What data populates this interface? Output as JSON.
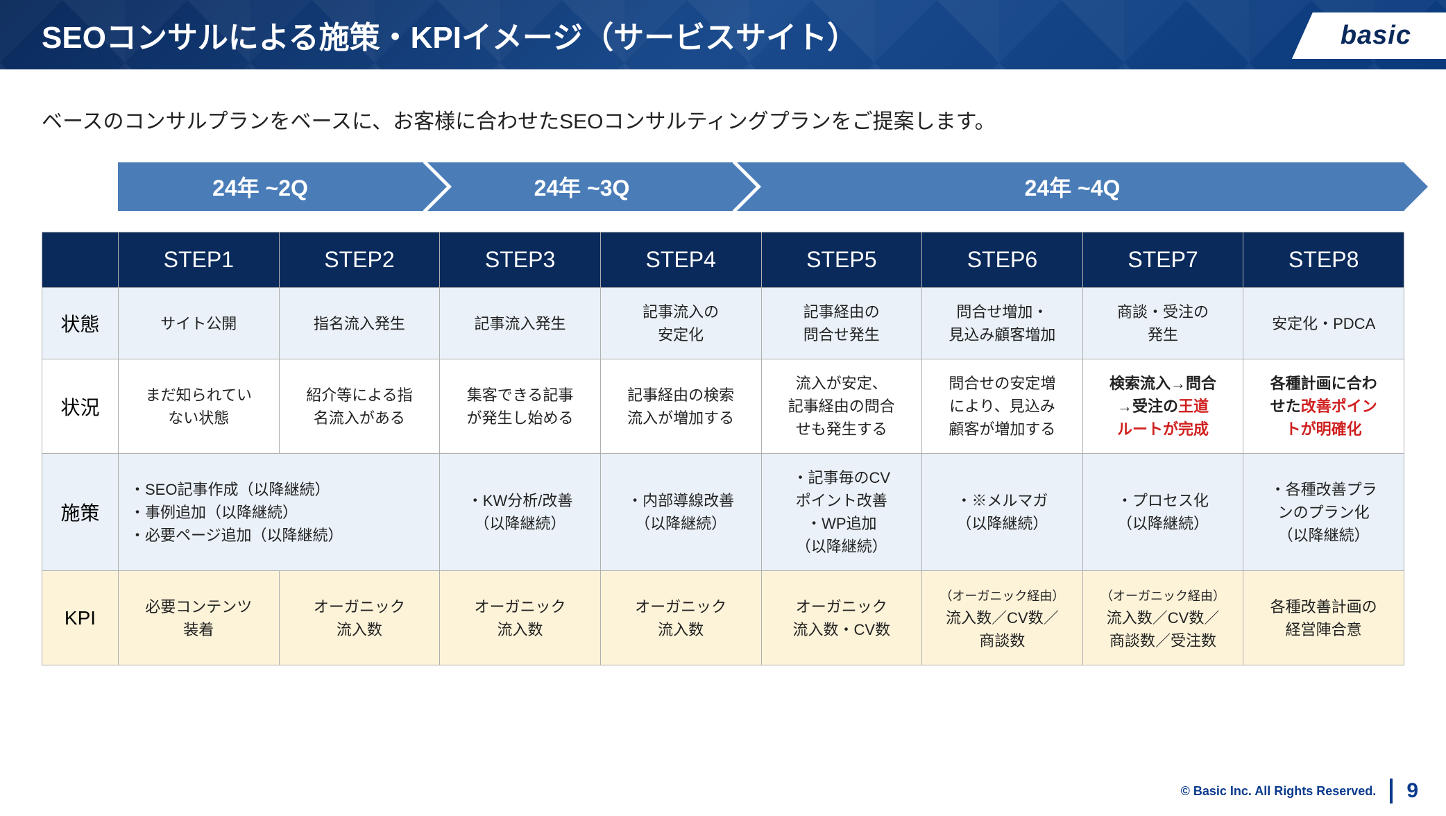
{
  "header": {
    "title": "SEOコンサルによる施策・KPIイメージ（サービスサイト）",
    "logo": "basic"
  },
  "subtitle": "ベースのコンサルプランをベースに、お客様に合わせたSEOコンサルティングプランをご提案します。",
  "timeline": {
    "q2": "24年 ~2Q",
    "q3": "24年 ~3Q",
    "q4": "24年 ~4Q"
  },
  "table": {
    "steps": [
      "STEP1",
      "STEP2",
      "STEP3",
      "STEP4",
      "STEP5",
      "STEP6",
      "STEP7",
      "STEP8"
    ],
    "rows": {
      "state": {
        "label": "状態",
        "cells": [
          "サイト公開",
          "指名流入発生",
          "記事流入発生",
          "記事流入の\n安定化",
          "記事経由の\n問合せ発生",
          "問合せ増加・\n見込み顧客増加",
          "商談・受注の\n発生",
          "安定化・PDCA"
        ]
      },
      "situation": {
        "label": "状況",
        "cells": [
          "まだ知られてい\nない状態",
          "紹介等による指\n名流入がある",
          "集客できる記事\nが発生し始める",
          "記事経由の検索\n流入が増加する",
          "流入が安定、\n記事経由の問合\nせも発生する",
          "問合せの安定増\nにより、見込み\n顧客が増加する",
          {
            "bold": "検索流入→問合\n→受注の",
            "red": "王道\nルートが完成"
          },
          {
            "bold": "各種計画に合わ\nせた",
            "red": "改善ポイン\nトが明確化"
          }
        ]
      },
      "measure": {
        "label": "施策",
        "cells": [
          {
            "colspan": 2,
            "text": "・SEO記事作成（以降継続）\n・事例追加（以降継続）\n・必要ページ追加（以降継続）",
            "align": "left"
          },
          "・KW分析/改善\n（以降継続）",
          "・内部導線改善\n（以降継続）",
          "・記事毎のCV\nポイント改善\n・WP追加\n（以降継続）",
          "・※メルマガ\n（以降継続）",
          "・プロセス化\n（以降継続）",
          "・各種改善プラ\nンのプラン化\n（以降継続）"
        ]
      },
      "kpi": {
        "label": "KPI",
        "cells": [
          "必要コンテンツ\n装着",
          "オーガニック\n流入数",
          "オーガニック\n流入数",
          "オーガニック\n流入数",
          "オーガニック\n流入数・CV数",
          {
            "small": "（オーガニック経由）",
            "text": "流入数／CV数／\n商談数"
          },
          {
            "small": "（オーガニック経由）",
            "text": "流入数／CV数／\n商談数／受注数"
          },
          "各種改善計画の\n経営陣合意"
        ]
      }
    }
  },
  "footer": {
    "copyright": "© Basic Inc. All Rights Reserved.",
    "page": "9"
  },
  "colors": {
    "header_bg": "#0a2a5c",
    "arrow_bg": "#4a7db8",
    "state_row_bg": "#eaf1f8",
    "kpi_row_bg": "#fdf3d9",
    "border": "#b0b0b0",
    "red": "#d02020"
  }
}
